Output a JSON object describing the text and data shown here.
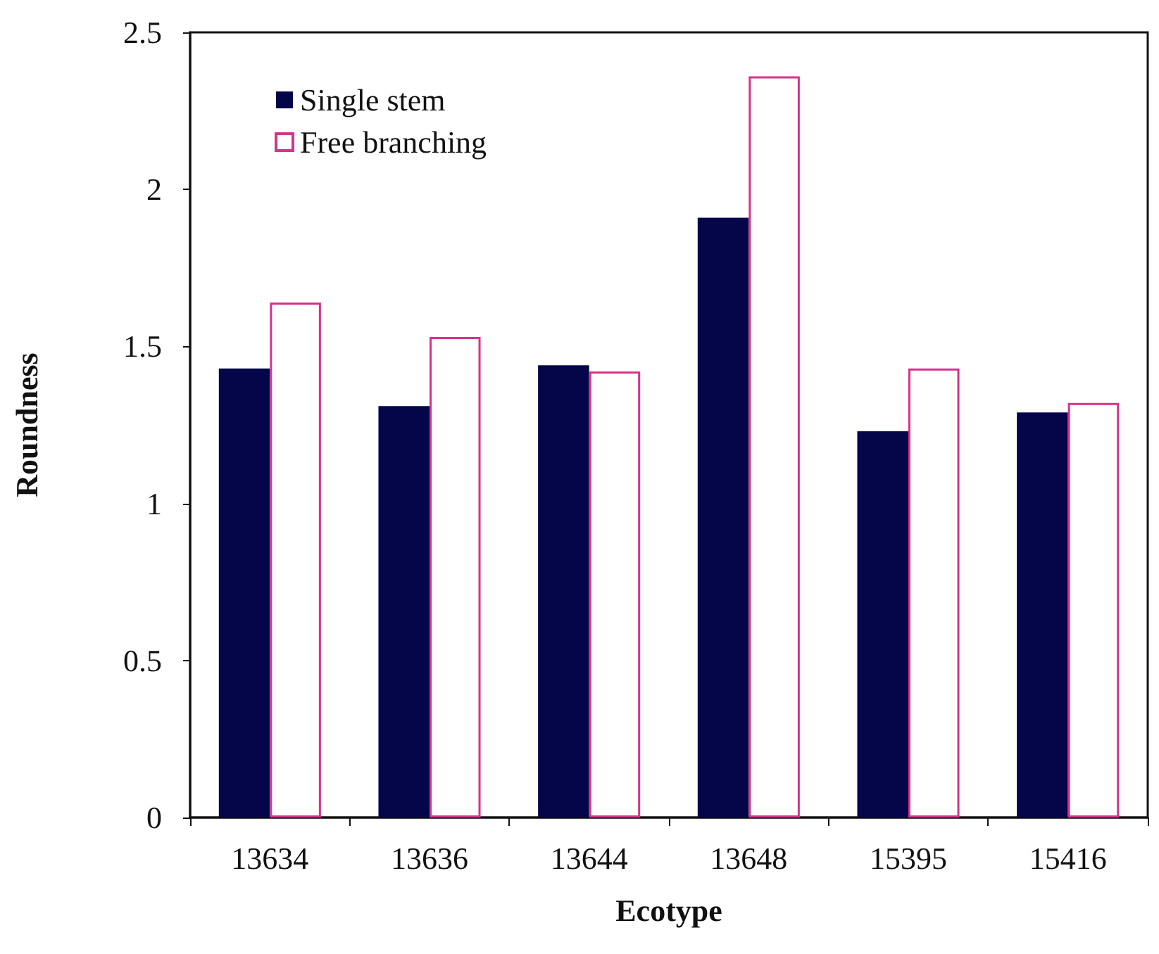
{
  "chart_data": {
    "type": "bar",
    "xlabel": "Ecotype",
    "ylabel": "Roundness",
    "categories": [
      "13634",
      "13636",
      "13644",
      "13648",
      "15395",
      "15416"
    ],
    "series": [
      {
        "name": "Single stem",
        "color": "#05054a",
        "values": [
          1.43,
          1.31,
          1.44,
          1.91,
          1.23,
          1.29
        ]
      },
      {
        "name": "Free branching",
        "color": "#ffffff",
        "values": [
          1.64,
          1.53,
          1.42,
          2.36,
          1.43,
          1.32
        ]
      }
    ],
    "ylim": [
      0,
      2.5
    ],
    "yticks": [
      0,
      0.5,
      1,
      1.5,
      2,
      2.5
    ],
    "grid": false,
    "legend": "top left"
  }
}
